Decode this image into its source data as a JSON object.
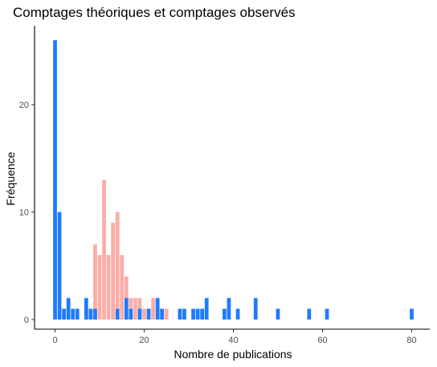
{
  "chart_data": {
    "type": "bar",
    "title": "Comptages théoriques et comptages observés",
    "xlabel": "Nombre de publications",
    "ylabel": "Fréquence",
    "xlim": [
      -1,
      81
    ],
    "ylim": [
      0,
      26.5
    ],
    "x_ticks": [
      0,
      20,
      40,
      60,
      80
    ],
    "y_ticks": [
      0,
      10,
      20
    ],
    "grid": false,
    "legend": "none",
    "bin_width": 1,
    "series": [
      {
        "color": "#F8766D",
        "opacity": 0.6,
        "x": [
          7,
          8,
          9,
          10,
          11,
          12,
          13,
          14,
          15,
          16,
          17,
          18,
          19,
          20,
          21,
          22,
          23,
          24,
          25
        ],
        "values": [
          1,
          1,
          7,
          6,
          13,
          6,
          9,
          10,
          6,
          4,
          2,
          2,
          2,
          1,
          1,
          2,
          1,
          1,
          1
        ]
      },
      {
        "color": "#1E7BFF",
        "opacity": 1,
        "x": [
          0,
          1,
          2,
          3,
          4,
          5,
          7,
          8,
          9,
          14,
          16,
          17,
          19,
          21,
          23,
          24,
          28,
          29,
          31,
          32,
          33,
          34,
          38,
          39,
          41,
          45,
          50,
          57,
          61,
          80
        ],
        "values": [
          26,
          10,
          1,
          2,
          1,
          1,
          2,
          1,
          1,
          1,
          2,
          1,
          1,
          1,
          2,
          1,
          1,
          1,
          1,
          1,
          1,
          2,
          1,
          2,
          1,
          2,
          1,
          1,
          1,
          1
        ]
      }
    ]
  }
}
